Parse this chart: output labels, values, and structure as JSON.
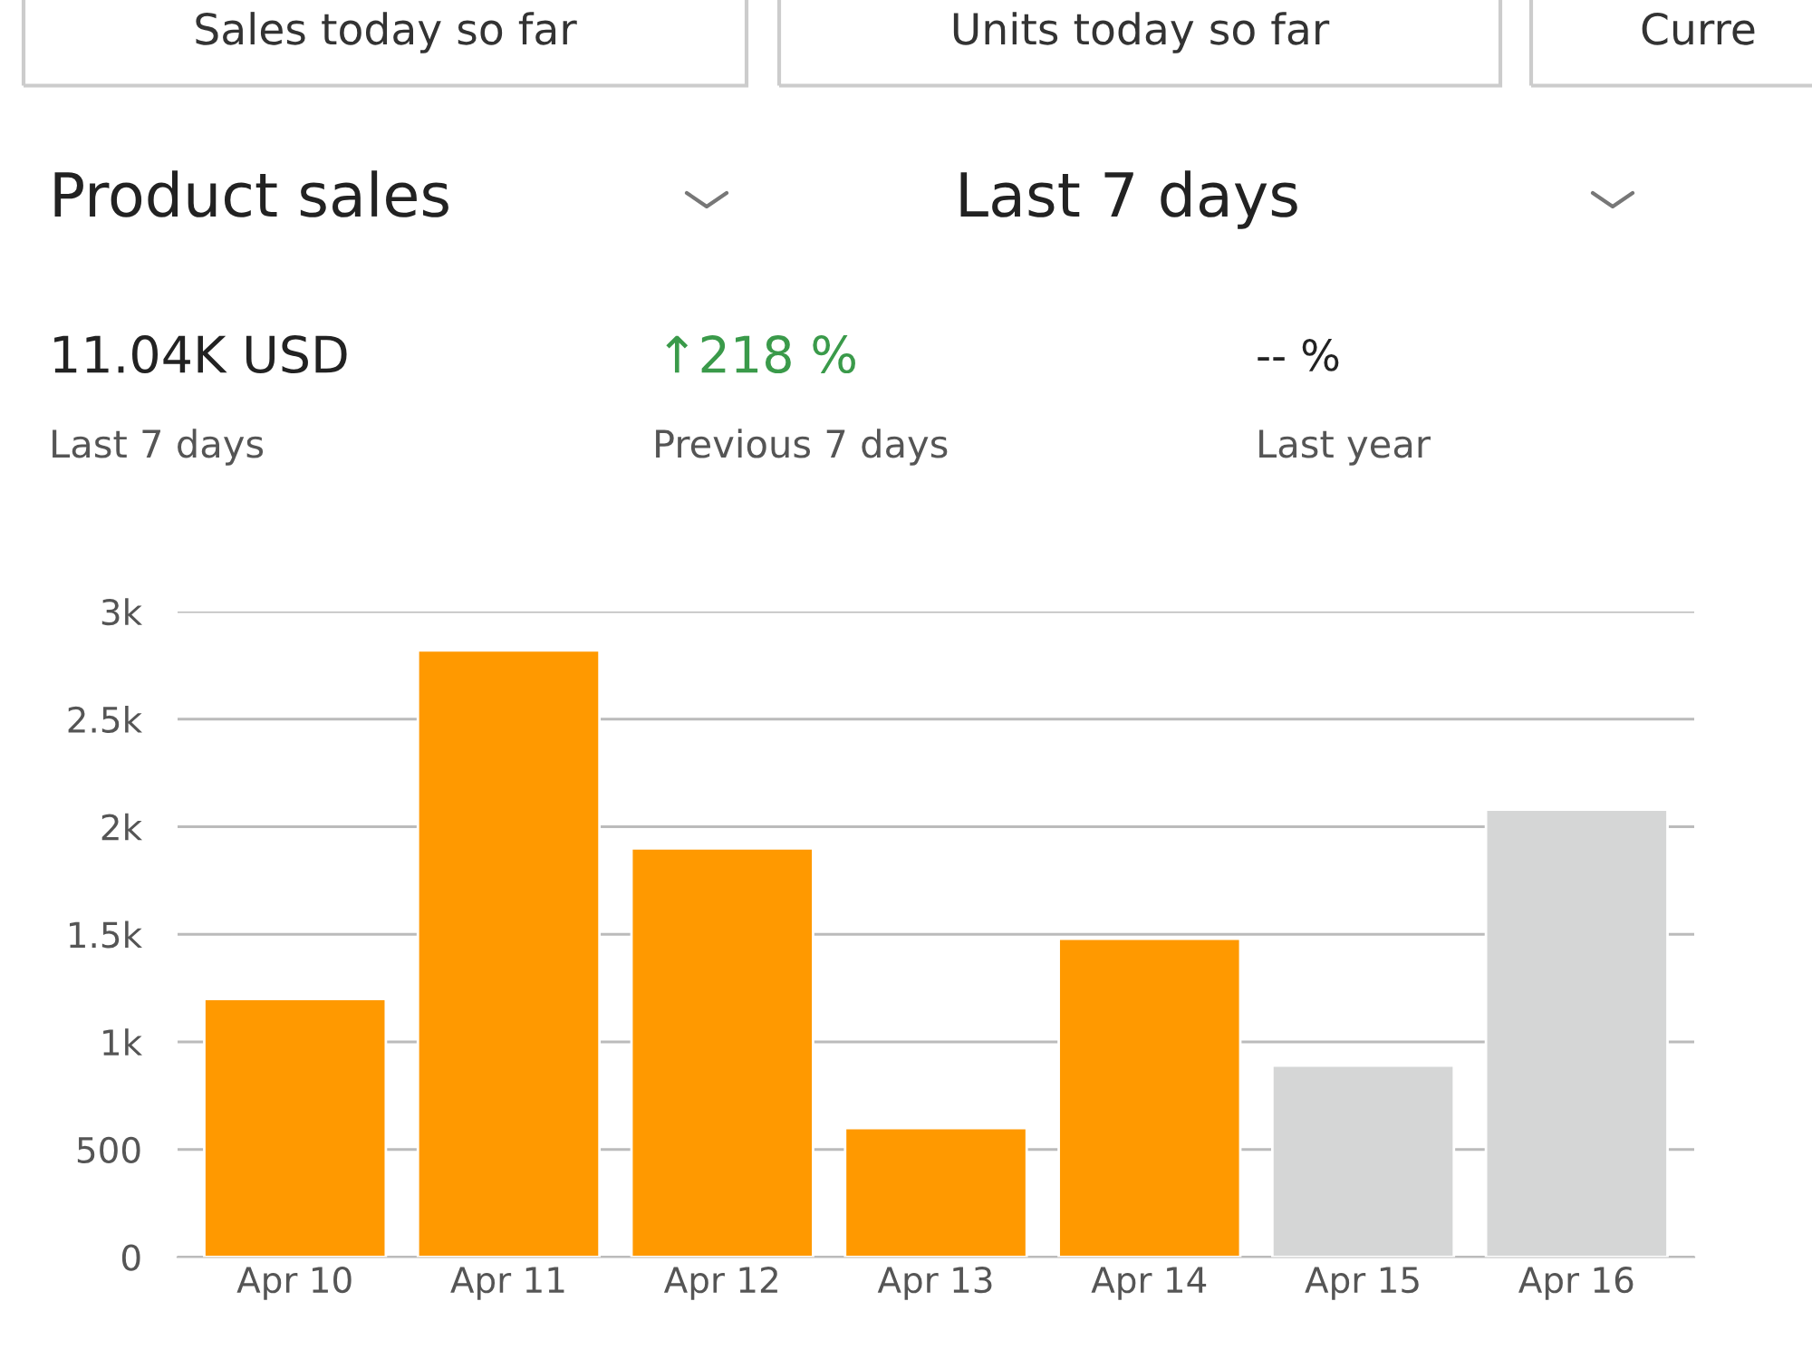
{
  "chart_data": {
    "type": "bar",
    "title": "Product sales",
    "subtitle": "Last 7 days",
    "categories": [
      "Apr 10",
      "Apr 11",
      "Apr 12",
      "Apr 13",
      "Apr 14",
      "Apr 15",
      "Apr 16"
    ],
    "values": [
      1200,
      2820,
      1900,
      600,
      1480,
      890,
      2080
    ],
    "colors": [
      "#ff9900",
      "#ff9900",
      "#ff9900",
      "#ff9900",
      "#ff9900",
      "#d5d6d6",
      "#d5d6d6"
    ],
    "ylim": [
      0,
      3000
    ],
    "yticks": [
      0,
      500,
      {
        "value": 1000,
        "label": "1k"
      },
      {
        "value": 1500,
        "label": "1.5k"
      },
      {
        "value": 2000,
        "label": "2k"
      },
      {
        "value": 2500,
        "label": "2.5k"
      },
      {
        "value": 3000,
        "label": "3k"
      }
    ],
    "grid": "y",
    "annotations": [
      "Sales today so far",
      "Units today so far",
      "Curre",
      "11.04K USD",
      "Last 7 days",
      "↑218 %",
      "Previous 7 days",
      "-- %",
      "Last year"
    ]
  }
}
